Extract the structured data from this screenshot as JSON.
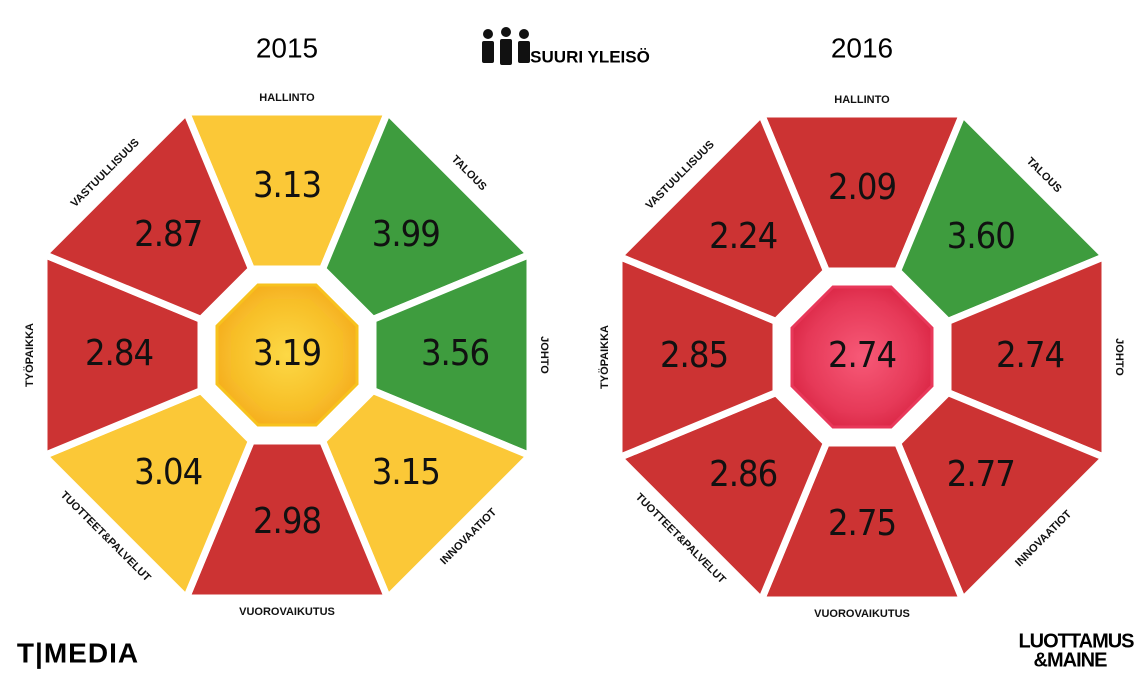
{
  "header": {
    "audience": "SUURI YLEISÖ"
  },
  "panels": [
    {
      "year": "2015",
      "center": {
        "value": "3.19",
        "color": "#f7c21e"
      },
      "segments": [
        {
          "label": "HALLINTO",
          "value": "3.13",
          "color": "#fbc837"
        },
        {
          "label": "TALOUS",
          "value": "3.99",
          "color": "#3e9c3e"
        },
        {
          "label": "JOHTO",
          "value": "3.56",
          "color": "#3e9c3e"
        },
        {
          "label": "INNOVAATIOT",
          "value": "3.15",
          "color": "#fbc837"
        },
        {
          "label": "VUOROVAIKUTUS",
          "value": "2.98",
          "color": "#cc3333"
        },
        {
          "label": "TUOTTEET&PALVELUT",
          "value": "3.04",
          "color": "#fbc837"
        },
        {
          "label": "TYÖPAIKKA",
          "value": "2.84",
          "color": "#cc3333"
        },
        {
          "label": "VASTUULLISUUS",
          "value": "2.87",
          "color": "#cc3333"
        }
      ]
    },
    {
      "year": "2016",
      "center": {
        "value": "2.74",
        "color": "#e8385a"
      },
      "segments": [
        {
          "label": "HALLINTO",
          "value": "2.09",
          "color": "#cc3333"
        },
        {
          "label": "TALOUS",
          "value": "3.60",
          "color": "#3e9c3e"
        },
        {
          "label": "JOHTO",
          "value": "2.74",
          "color": "#cc3333"
        },
        {
          "label": "INNOVAATIOT",
          "value": "2.77",
          "color": "#cc3333"
        },
        {
          "label": "VUOROVAIKUTUS",
          "value": "2.75",
          "color": "#cc3333"
        },
        {
          "label": "TUOTTEET&PALVELUT",
          "value": "2.86",
          "color": "#cc3333"
        },
        {
          "label": "TYÖPAIKKA",
          "value": "2.85",
          "color": "#cc3333"
        },
        {
          "label": "VASTUULLISUUS",
          "value": "2.24",
          "color": "#cc3333"
        }
      ]
    }
  ],
  "footer": {
    "left_logo": "T|MEDIA",
    "right_logo_top": "LUOTTAMUS",
    "right_logo_bottom": "&MAINE"
  }
}
